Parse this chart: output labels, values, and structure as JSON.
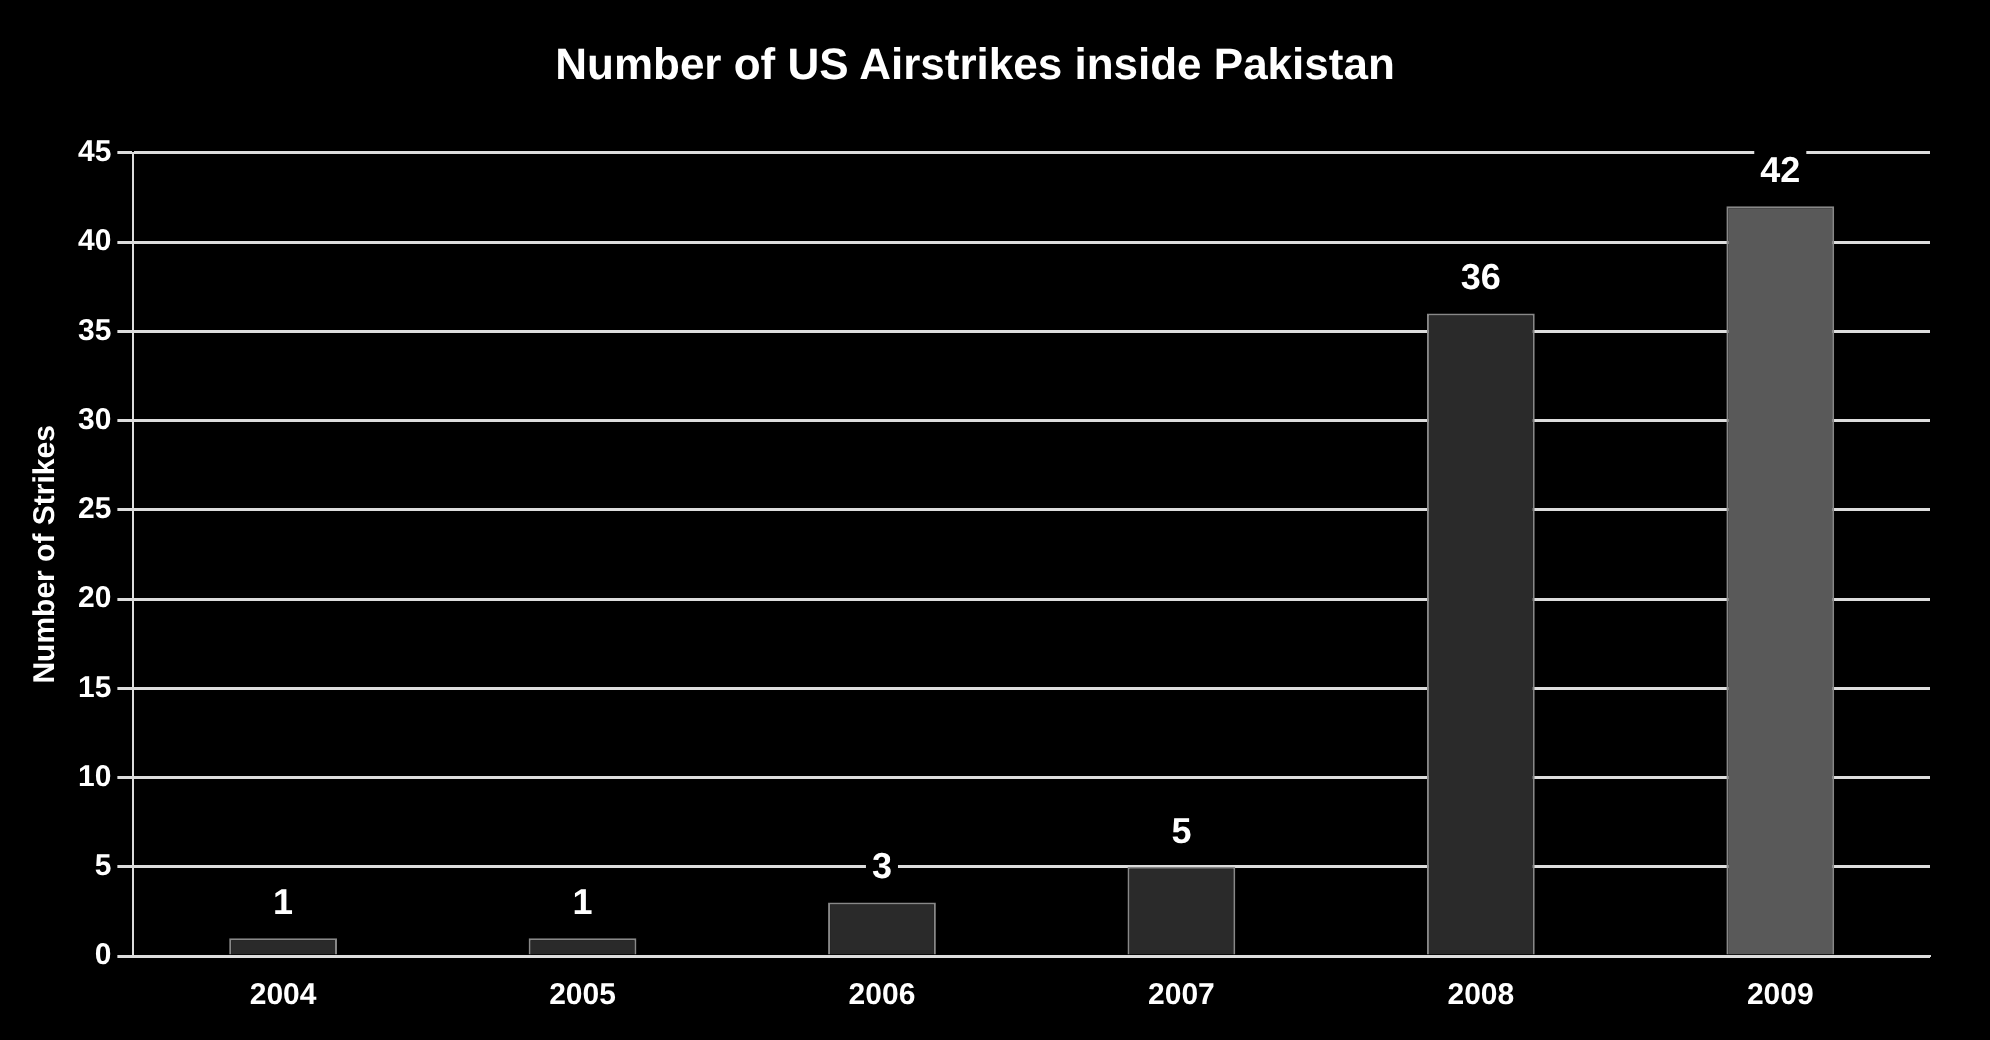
{
  "chart_data": {
    "type": "bar",
    "title": "Number of US Airstrikes inside Pakistan",
    "ylabel": "Number of Strikes",
    "categories": [
      "2004",
      "2005",
      "2006",
      "2007",
      "2008",
      "2009"
    ],
    "values": [
      1,
      1,
      3,
      5,
      36,
      42
    ],
    "colors": [
      "#2a2a2a",
      "#2a2a2a",
      "#2a2a2a",
      "#2a2a2a",
      "#2a2a2a",
      "#595959"
    ],
    "ylim": [
      0,
      45
    ],
    "yticks": [
      0,
      5,
      10,
      15,
      20,
      25,
      30,
      35,
      40,
      45
    ],
    "grid": "y",
    "data_labels": true
  }
}
